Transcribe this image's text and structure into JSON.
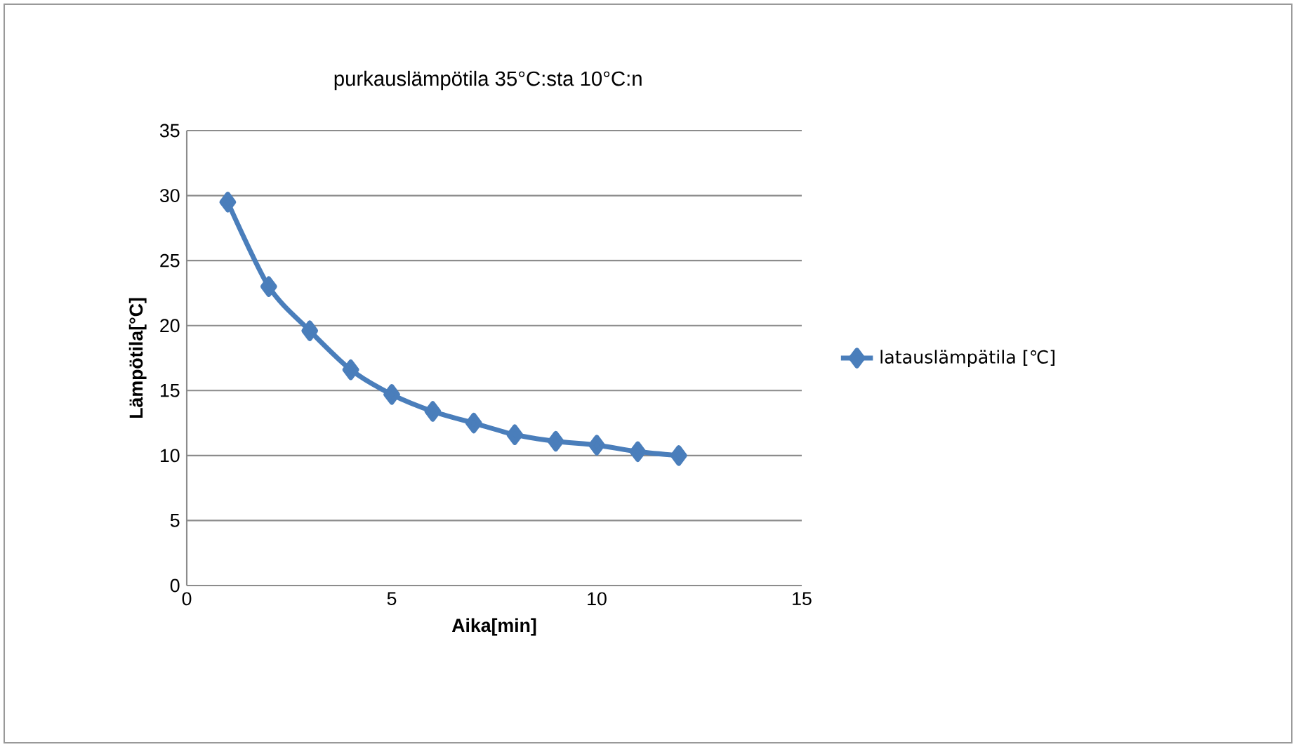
{
  "chart_data": {
    "type": "line",
    "title": "purkauslämpötila 35°C:sta 10°C:n",
    "xlabel": "Aika[min]",
    "ylabel": "Lämpötila[°C]",
    "x": [
      1,
      2,
      3,
      4,
      5,
      6,
      7,
      8,
      9,
      10,
      11,
      12
    ],
    "series": [
      {
        "name": "latauslämpätila [℃]",
        "color": "#4a7ebb",
        "values": [
          29.5,
          23.0,
          19.6,
          16.6,
          14.7,
          13.4,
          12.5,
          11.6,
          11.1,
          10.8,
          10.3,
          10.0
        ]
      }
    ],
    "xlim": [
      0,
      15
    ],
    "xticks": [
      0,
      5,
      10,
      15
    ],
    "ylim": [
      0,
      35
    ],
    "yticks": [
      0,
      5,
      10,
      15,
      20,
      25,
      30,
      35
    ],
    "grid": "y",
    "legend": "right",
    "marker": "diamond",
    "line_style": "solid"
  }
}
